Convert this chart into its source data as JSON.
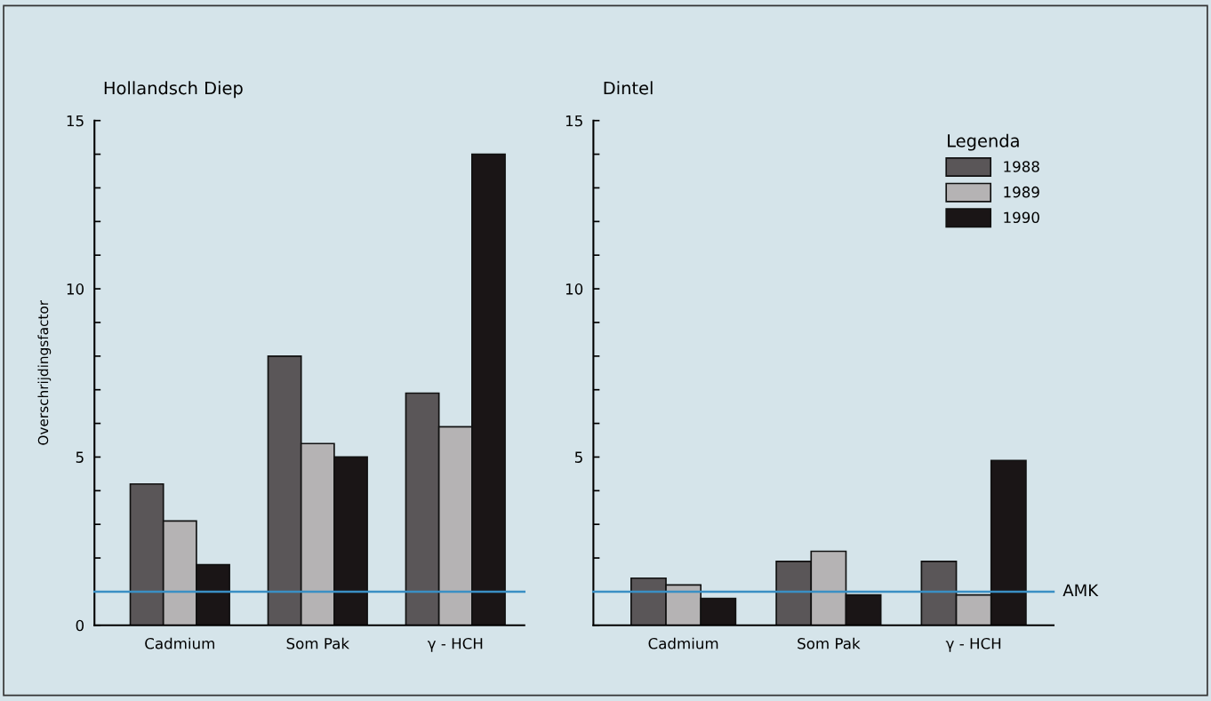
{
  "chart_data": [
    {
      "type": "bar",
      "title": "Hollandsch Diep",
      "ylabel": "Overschrijdingsfactor",
      "categories": [
        "Cadmium",
        "Som Pak",
        "γ - HCH"
      ],
      "series": [
        {
          "color": "#5a5658",
          "values": [
            4.2,
            8.0,
            6.9
          ]
        },
        {
          "color": "#b5b3b4",
          "values": [
            3.1,
            5.4,
            5.9
          ]
        },
        {
          "color": "#1a1516",
          "values": [
            1.8,
            5.0,
            14.0
          ]
        }
      ],
      "ylim": [
        0,
        15
      ],
      "yticks": [
        0,
        {
          "value": 1,
          "label": null
        },
        {
          "value": 2,
          "label": null
        },
        {
          "value": 3,
          "label": null
        },
        {
          "value": 4,
          "label": null
        },
        5,
        {
          "value": 6,
          "label": null
        },
        {
          "value": 7,
          "label": null
        },
        {
          "value": 8,
          "label": null
        },
        {
          "value": 9,
          "label": null
        },
        10,
        {
          "value": 11,
          "label": null
        },
        {
          "value": 12,
          "label": null
        },
        {
          "value": 13,
          "label": null
        },
        {
          "value": 14,
          "label": null
        },
        15
      ],
      "ref_lines": [
        {
          "axis": "y",
          "value": 1,
          "color": "#3a8fc4"
        }
      ],
      "grid": false,
      "legend": false
    },
    {
      "type": "bar",
      "title": "Dintel",
      "legend_title": "Legenda",
      "categories": [
        "Cadmium",
        "Som Pak",
        "γ - HCH"
      ],
      "series": [
        {
          "name": "1988",
          "color": "#5a5658",
          "values": [
            1.4,
            1.9,
            1.9
          ]
        },
        {
          "name": "1989",
          "color": "#b5b3b4",
          "values": [
            1.2,
            2.2,
            0.9
          ]
        },
        {
          "name": "1990",
          "color": "#1a1516",
          "values": [
            0.8,
            0.9,
            4.9
          ]
        }
      ],
      "ylim": [
        0,
        15
      ],
      "yticks": [
        {
          "value": 0,
          "label": null
        },
        {
          "value": 1,
          "label": null
        },
        {
          "value": 2,
          "label": null
        },
        {
          "value": 3,
          "label": null
        },
        {
          "value": 4,
          "label": null
        },
        5,
        {
          "value": 6,
          "label": null
        },
        {
          "value": 7,
          "label": null
        },
        {
          "value": 8,
          "label": null
        },
        {
          "value": 9,
          "label": null
        },
        10,
        {
          "value": 11,
          "label": null
        },
        {
          "value": 12,
          "label": null
        },
        {
          "value": 13,
          "label": null
        },
        {
          "value": 14,
          "label": null
        },
        15
      ],
      "ref_lines": [
        {
          "axis": "y",
          "value": 1,
          "label": "AMK",
          "color": "#3a8fc4"
        }
      ],
      "grid": false,
      "legend": "top right"
    }
  ]
}
